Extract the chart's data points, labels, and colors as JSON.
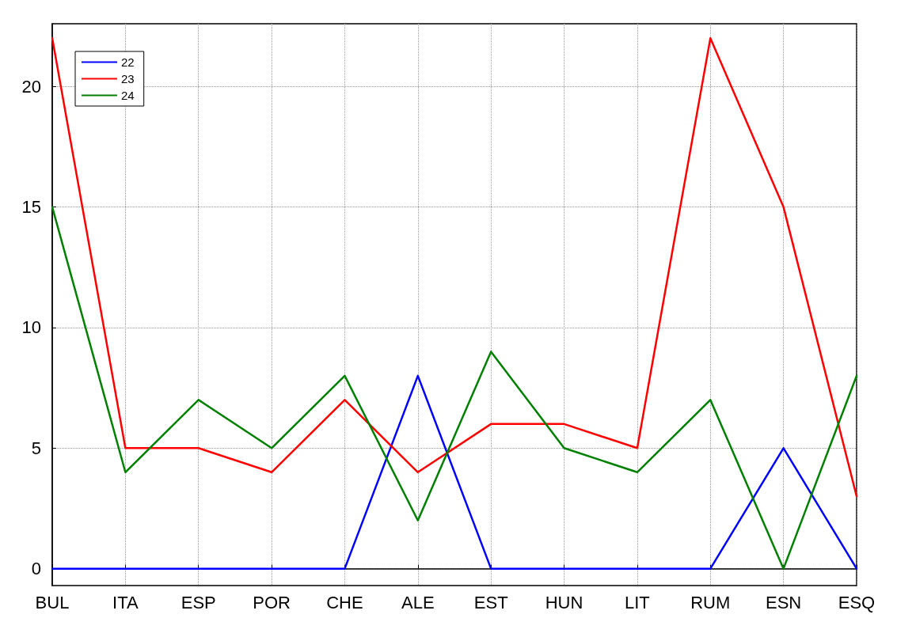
{
  "chart_data": {
    "type": "line",
    "categories": [
      "BUL",
      "ITA",
      "ESP",
      "POR",
      "CHE",
      "ALE",
      "EST",
      "HUN",
      "LIT",
      "RUM",
      "ESN",
      "ESQ"
    ],
    "series": [
      {
        "name": "22",
        "color": "#0000ff",
        "values": [
          0,
          0,
          0,
          0,
          0,
          8,
          0,
          0,
          0,
          0,
          5,
          0
        ]
      },
      {
        "name": "23",
        "color": "#ff0000",
        "values": [
          22,
          5,
          5,
          4,
          7,
          4,
          6,
          6,
          5,
          22,
          15,
          3
        ]
      },
      {
        "name": "24",
        "color": "#008000",
        "values": [
          15,
          4,
          7,
          5,
          8,
          2,
          9,
          5,
          4,
          7,
          0,
          8
        ]
      }
    ],
    "ylim": [
      -0.7,
      22.6
    ],
    "yticks": [
      0,
      5,
      10,
      15,
      20
    ],
    "grid": true,
    "legend": "top left",
    "marker": "none",
    "line_style": "solid"
  }
}
